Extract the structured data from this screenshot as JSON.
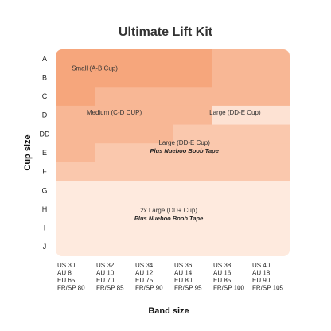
{
  "chart_data": {
    "type": "heatmap",
    "title": "Ultimate Lift Kit",
    "xlabel": "Band size",
    "ylabel": "Cup size",
    "cup_sizes": [
      "A",
      "B",
      "C",
      "D",
      "DD",
      "E",
      "F",
      "G",
      "H",
      "I",
      "J"
    ],
    "band_sizes": [
      [
        "US 30",
        "AU 8",
        "EU 65",
        "FR/SP 80"
      ],
      [
        "US 32",
        "AU 10",
        "EU 70",
        "FR/SP 85"
      ],
      [
        "US 34",
        "AU 12",
        "EU 75",
        "FR/SP 90"
      ],
      [
        "US 36",
        "AU 14",
        "EU 80",
        "FR/SP 95"
      ],
      [
        "US 38",
        "AU 16",
        "EU 85",
        "FR/SP 100"
      ],
      [
        "US 40",
        "AU 18",
        "EU 90",
        "FR/SP 105"
      ]
    ],
    "zones": [
      {
        "label": "Small (A-B Cup)",
        "sublabel": "",
        "color": "#f6a67c"
      },
      {
        "label": "Medium (C-D CUP)",
        "sublabel": "",
        "color": "#f8b795"
      },
      {
        "label": "Large (DD-E Cup)",
        "sublabel": "",
        "color": "#fde2d3"
      },
      {
        "label": "Large (DD-E Cup)",
        "sublabel": "Plus Nueboo Boob Tape",
        "color": "#fac8ad"
      },
      {
        "label": "2x Large (DD+ Cup)",
        "sublabel": "Plus Nueboo Boob Tape",
        "color": "#feeade"
      }
    ],
    "grid": [
      [
        0,
        0,
        0,
        0,
        1,
        1
      ],
      [
        0,
        0,
        0,
        0,
        1,
        1
      ],
      [
        0,
        1,
        1,
        1,
        1,
        1
      ],
      [
        1,
        1,
        1,
        1,
        2,
        2
      ],
      [
        1,
        1,
        1,
        3,
        3,
        3
      ],
      [
        1,
        3,
        3,
        3,
        3,
        3
      ],
      [
        3,
        3,
        3,
        3,
        3,
        3
      ],
      [
        4,
        4,
        4,
        4,
        4,
        4
      ],
      [
        4,
        4,
        4,
        4,
        4,
        4
      ],
      [
        4,
        4,
        4,
        4,
        4,
        4
      ],
      [
        4,
        4,
        4,
        4,
        4,
        4
      ]
    ]
  }
}
